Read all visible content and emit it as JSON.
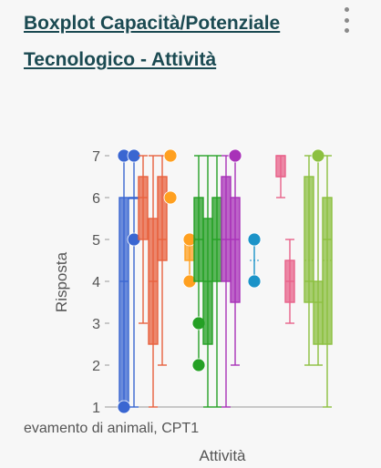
{
  "header": {
    "title": "Boxplot Capacità/Potenziale Tecnologico - Attività",
    "menu_icon": "kebab-menu-icon"
  },
  "chart_data": {
    "type": "boxplot",
    "title": "",
    "xlabel": "Attività",
    "ylabel": "Risposta",
    "ylim": [
      1,
      7
    ],
    "yticks": [
      1,
      2,
      3,
      4,
      5,
      6,
      7
    ],
    "x_category_visible": "evamento di animali, CPT1",
    "grid": false,
    "series": [
      {
        "color": "#3a66d1",
        "min": 1,
        "q1": 1,
        "median": 4,
        "q3": 6,
        "max": 7,
        "mean": 4,
        "outliers": [
          1,
          7
        ]
      },
      {
        "color": "#3a66d1",
        "min": 1,
        "q1": 6,
        "median": 6,
        "q3": 6,
        "max": 7,
        "mean": 6,
        "outliers": [
          5,
          7
        ]
      },
      {
        "color": "#e8623f",
        "min": 3,
        "q1": 5,
        "median": 6,
        "q3": 6.5,
        "max": 7,
        "mean": 6
      },
      {
        "color": "#e8623f",
        "min": 1,
        "q1": 2.5,
        "median": 4,
        "q3": 5.5,
        "max": 7,
        "mean": 4
      },
      {
        "color": "#e8623f",
        "min": 2,
        "q1": 4.5,
        "median": 5,
        "q3": 6.5,
        "max": 7,
        "mean": 5
      },
      {
        "color": "#ffa020",
        "min": 7,
        "q1": 7,
        "median": 7,
        "q3": 7,
        "max": 7,
        "mean": 7,
        "outliers": [
          7,
          6
        ]
      },
      {
        "color": "#ffa020",
        "min": 4,
        "q1": 4.5,
        "median": 5,
        "q3": 5,
        "max": 5,
        "mean": 4.5,
        "outliers": [
          5,
          4
        ]
      },
      {
        "color": "#25a025",
        "min": 2,
        "q1": 4,
        "median": 5,
        "q3": 6,
        "max": 7,
        "mean": 5,
        "outliers": [
          3,
          2
        ]
      },
      {
        "color": "#25a025",
        "min": 1,
        "q1": 2.5,
        "median": 4,
        "q3": 5.5,
        "max": 7,
        "mean": 4
      },
      {
        "color": "#25a025",
        "min": 1,
        "q1": 4,
        "median": 5,
        "q3": 6,
        "max": 7,
        "mean": 5
      },
      {
        "color": "#a832b8",
        "min": 1,
        "q1": 4,
        "median": 5,
        "q3": 6.5,
        "max": 7,
        "mean": 5
      },
      {
        "color": "#a832b8",
        "min": 2,
        "q1": 3.5,
        "median": 5,
        "q3": 6,
        "max": 7,
        "mean": 5,
        "outliers": [
          7
        ]
      },
      {
        "color": "#1b93c8",
        "min": 4,
        "q1": 5,
        "median": 5,
        "q3": 5,
        "max": 5,
        "mean": 4.5,
        "outliers": [
          5,
          4
        ]
      },
      {
        "color": "#e8628a",
        "min": 6,
        "q1": 6.5,
        "median": 6.5,
        "q3": 7,
        "max": 7,
        "mean": 6.5
      },
      {
        "color": "#e8628a",
        "min": 3,
        "q1": 3.5,
        "median": 4,
        "q3": 4.5,
        "max": 5,
        "mean": 4
      },
      {
        "color": "#8cc040",
        "min": 2,
        "q1": 3.5,
        "median": 4,
        "q3": 6.5,
        "max": 7,
        "mean": 4.5
      },
      {
        "color": "#8cc040",
        "min": 2,
        "q1": 2.5,
        "median": 3.5,
        "q3": 4,
        "max": 7,
        "mean": 3.5,
        "outliers": [
          7
        ]
      },
      {
        "color": "#8cc040",
        "min": 1,
        "q1": 2.5,
        "median": 5,
        "q3": 6,
        "max": 7,
        "mean": 4.5
      }
    ]
  }
}
